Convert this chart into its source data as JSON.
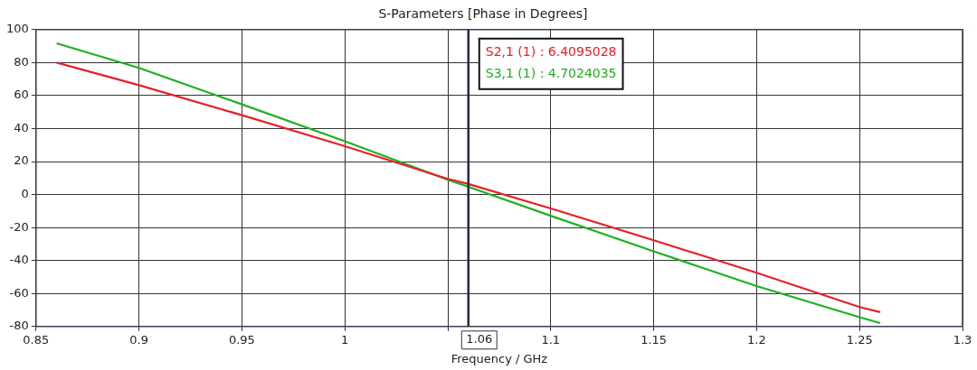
{
  "chart_data": {
    "type": "line",
    "title": "S-Parameters [Phase in Degrees]",
    "xlabel": "Frequency / GHz",
    "xlim": [
      0.85,
      1.3
    ],
    "xticks": [
      0.85,
      0.9,
      0.95,
      1,
      {
        "value": 1.05,
        "label": null
      },
      1.1,
      1.15,
      1.2,
      1.25,
      1.3
    ],
    "ylim": [
      -80,
      100
    ],
    "yticks": [
      -80,
      -60,
      -40,
      -20,
      0,
      20,
      40,
      60,
      80,
      100
    ],
    "grid": true,
    "line_style": "solid",
    "marker": "none",
    "x": [
      0.86,
      0.9,
      0.95,
      1,
      1.05,
      1.06,
      1.1,
      1.15,
      1.2,
      1.25,
      1.26
    ],
    "series": [
      {
        "color": "#e8202a",
        "values": [
          80,
          66.3,
          48.1,
          29.3,
          9.5,
          6.4095028,
          -8.4,
          -27.7,
          -47.4,
          -68.2,
          -71.3
        ]
      },
      {
        "color": "#1fb01f",
        "values": [
          91.7,
          76.8,
          54.7,
          32.3,
          8.9,
          4.7024035,
          -12.9,
          -34.4,
          -55.5,
          -74.4,
          -77.9
        ]
      }
    ],
    "ref_lines": [
      {
        "axis": "x",
        "value": 1.06,
        "label": "1.06",
        "color": "#1f2a44"
      }
    ],
    "annotations": [
      "S2,1 (1) : 6.4095028",
      "S3,1 (1) : 4.7024035"
    ]
  }
}
